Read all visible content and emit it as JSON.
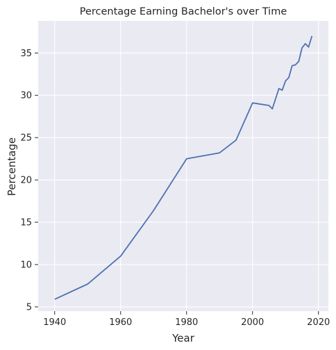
{
  "chart_data": {
    "type": "line",
    "title": "Percentage Earning Bachelor's over Time",
    "xlabel": "Year",
    "ylabel": "Percentage",
    "xlim": [
      1935,
      2023
    ],
    "ylim": [
      4.5,
      38.8
    ],
    "xticks": [
      1940,
      1960,
      1980,
      2000,
      2020
    ],
    "yticks": [
      5,
      10,
      15,
      20,
      25,
      30,
      35
    ],
    "grid": true,
    "colors": {
      "line": "#4c72b0",
      "background": "#eaeaf2",
      "grid": "#ffffff"
    },
    "series": [
      {
        "x": [
          1940,
          1950,
          1960,
          1970,
          1980,
          1990,
          1995,
          2000,
          2005,
          2006,
          2007,
          2008,
          2009,
          2010,
          2011,
          2012,
          2013,
          2014,
          2015,
          2016,
          2017,
          2018
        ],
        "values": [
          5.9,
          7.7,
          11.0,
          16.4,
          22.5,
          23.2,
          24.7,
          29.1,
          28.8,
          28.4,
          29.6,
          30.8,
          30.6,
          31.7,
          32.1,
          33.5,
          33.6,
          34.0,
          35.6,
          36.1,
          35.7,
          37.0
        ]
      }
    ]
  }
}
